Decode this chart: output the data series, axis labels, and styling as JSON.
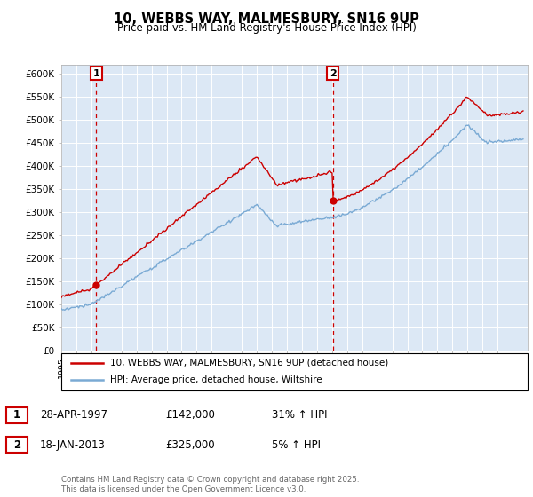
{
  "title": "10, WEBBS WAY, MALMESBURY, SN16 9UP",
  "subtitle": "Price paid vs. HM Land Registry's House Price Index (HPI)",
  "ylim": [
    0,
    620000
  ],
  "yticks": [
    0,
    50000,
    100000,
    150000,
    200000,
    250000,
    300000,
    350000,
    400000,
    450000,
    500000,
    550000,
    600000
  ],
  "ytick_labels": [
    "£0",
    "£50K",
    "£100K",
    "£150K",
    "£200K",
    "£250K",
    "£300K",
    "£350K",
    "£400K",
    "£450K",
    "£500K",
    "£550K",
    "£600K"
  ],
  "hpi_color": "#7aaad4",
  "price_color": "#cc0000",
  "background_color": "#dce8f5",
  "purchase1_year": 1997.32,
  "purchase1_price": 142000,
  "purchase1_label": "1",
  "purchase2_year": 2013.05,
  "purchase2_price": 325000,
  "purchase2_label": "2",
  "legend_line1": "10, WEBBS WAY, MALMESBURY, SN16 9UP (detached house)",
  "legend_line2": "HPI: Average price, detached house, Wiltshire",
  "table_row1": [
    "1",
    "28-APR-1997",
    "£142,000",
    "31% ↑ HPI"
  ],
  "table_row2": [
    "2",
    "18-JAN-2013",
    "£325,000",
    "5% ↑ HPI"
  ],
  "footnote": "Contains HM Land Registry data © Crown copyright and database right 2025.\nThis data is licensed under the Open Government Licence v3.0.",
  "xmin": 1995,
  "xmax": 2026
}
